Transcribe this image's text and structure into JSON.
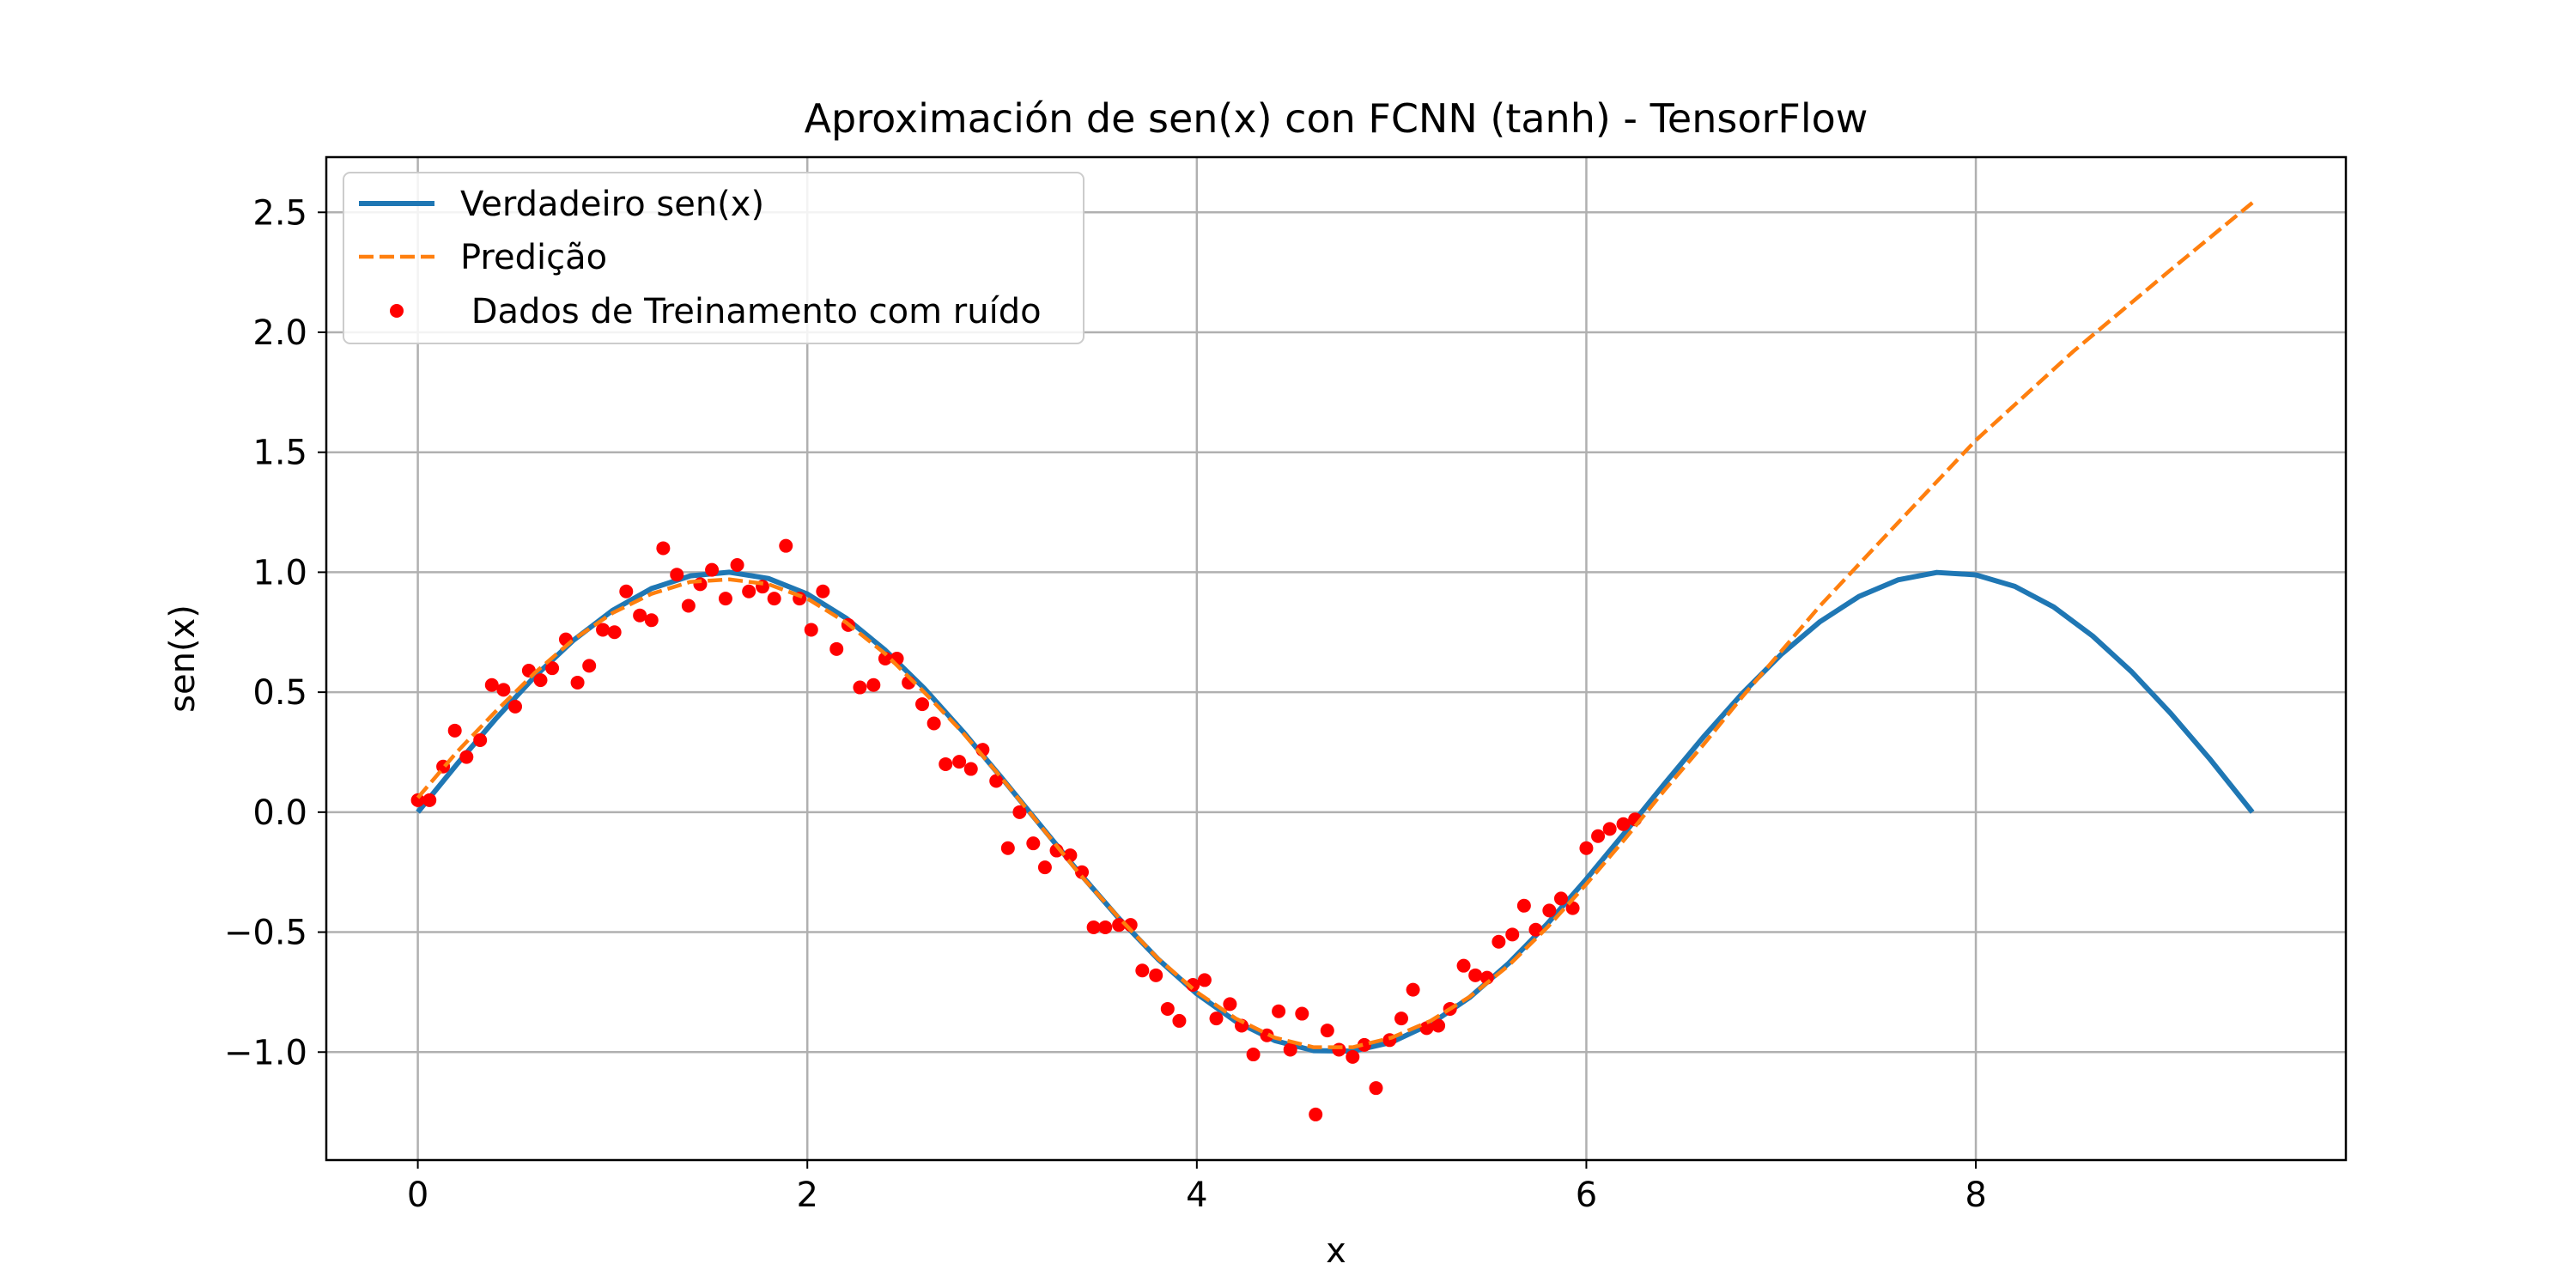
{
  "chart_data": {
    "type": "line",
    "title": "Aproximación de sen(x) con FCNN (tanh) - TensorFlow",
    "xlabel": "x",
    "ylabel": "sen(x)",
    "xlim": [
      -0.47,
      9.9
    ],
    "ylim": [
      -1.45,
      2.73
    ],
    "xticks": [
      0,
      2,
      4,
      6,
      8
    ],
    "yticks": [
      -1.0,
      -0.5,
      0.0,
      0.5,
      1.0,
      1.5,
      2.0,
      2.5
    ],
    "xtick_labels": [
      "0",
      "2",
      "4",
      "6",
      "8"
    ],
    "ytick_labels": [
      "−1.0",
      "−0.5",
      "0.0",
      "0.5",
      "1.0",
      "1.5",
      "2.0",
      "2.5"
    ],
    "grid": true,
    "legend_position": "top-left",
    "series": [
      {
        "name": "Verdadeiro sen(x)",
        "style": "solid",
        "color": "#1f77b4",
        "x": [
          0,
          0.2,
          0.4,
          0.6,
          0.8,
          1.0,
          1.2,
          1.4,
          1.6,
          1.8,
          2.0,
          2.2,
          2.4,
          2.6,
          2.8,
          3.0,
          3.2,
          3.4,
          3.6,
          3.8,
          4.0,
          4.2,
          4.4,
          4.6,
          4.8,
          5.0,
          5.2,
          5.4,
          5.6,
          5.8,
          6.0,
          6.2,
          6.4,
          6.6,
          6.8,
          7.0,
          7.2,
          7.4,
          7.6,
          7.8,
          8.0,
          8.2,
          8.4,
          8.6,
          8.8,
          9.0,
          9.2,
          9.42
        ],
        "y": [
          0.0,
          0.199,
          0.389,
          0.565,
          0.717,
          0.841,
          0.932,
          0.985,
          1.0,
          0.974,
          0.909,
          0.808,
          0.675,
          0.516,
          0.335,
          0.141,
          -0.058,
          -0.256,
          -0.443,
          -0.612,
          -0.757,
          -0.872,
          -0.952,
          -0.994,
          -0.996,
          -0.959,
          -0.883,
          -0.773,
          -0.631,
          -0.465,
          -0.279,
          -0.083,
          0.117,
          0.312,
          0.494,
          0.657,
          0.794,
          0.899,
          0.968,
          0.999,
          0.989,
          0.941,
          0.855,
          0.734,
          0.585,
          0.412,
          0.223,
          0.0
        ]
      },
      {
        "name": "Predição",
        "style": "dashed",
        "color": "#ff7f0e",
        "x": [
          0,
          0.2,
          0.4,
          0.6,
          0.8,
          1.0,
          1.2,
          1.4,
          1.6,
          1.8,
          2.0,
          2.2,
          2.4,
          2.6,
          2.8,
          3.0,
          3.2,
          3.4,
          3.6,
          3.8,
          4.0,
          4.2,
          4.4,
          4.6,
          4.8,
          5.0,
          5.2,
          5.4,
          5.6,
          5.8,
          6.0,
          6.2,
          6.4,
          6.6,
          6.8,
          7.0,
          7.2,
          7.5,
          8.0,
          8.5,
          9.0,
          9.42
        ],
        "y": [
          0.06,
          0.25,
          0.42,
          0.58,
          0.72,
          0.83,
          0.91,
          0.96,
          0.97,
          0.95,
          0.89,
          0.79,
          0.66,
          0.5,
          0.33,
          0.14,
          -0.06,
          -0.26,
          -0.44,
          -0.61,
          -0.75,
          -0.86,
          -0.94,
          -0.98,
          -0.98,
          -0.94,
          -0.87,
          -0.77,
          -0.64,
          -0.48,
          -0.3,
          -0.11,
          0.09,
          0.28,
          0.48,
          0.67,
          0.86,
          1.12,
          1.55,
          1.92,
          2.26,
          2.54
        ]
      }
    ],
    "scatter": {
      "name": " Dados de Treinamento com ruído",
      "color": "#ff0000",
      "x": [
        0.0,
        0.06,
        0.13,
        0.19,
        0.25,
        0.32,
        0.38,
        0.44,
        0.5,
        0.57,
        0.63,
        0.69,
        0.76,
        0.82,
        0.88,
        0.95,
        1.01,
        1.07,
        1.14,
        1.2,
        1.26,
        1.33,
        1.39,
        1.45,
        1.51,
        1.58,
        1.64,
        1.7,
        1.77,
        1.83,
        1.89,
        1.96,
        2.02,
        2.08,
        2.15,
        2.21,
        2.27,
        2.34,
        2.4,
        2.46,
        2.52,
        2.59,
        2.65,
        2.71,
        2.78,
        2.84,
        2.9,
        2.97,
        3.03,
        3.09,
        3.16,
        3.22,
        3.28,
        3.35,
        3.41,
        3.47,
        3.53,
        3.6,
        3.66,
        3.72,
        3.79,
        3.85,
        3.91,
        3.98,
        4.04,
        4.1,
        4.17,
        4.23,
        4.29,
        4.36,
        4.42,
        4.48,
        4.54,
        4.61,
        4.67,
        4.73,
        4.8,
        4.86,
        4.92,
        4.99,
        5.05,
        5.11,
        5.18,
        5.24,
        5.3,
        5.37,
        5.43,
        5.49,
        5.55,
        5.62,
        5.68,
        5.74,
        5.81,
        5.87,
        5.93,
        6.0,
        6.06,
        6.12,
        6.19,
        6.25
      ],
      "y": [
        0.05,
        0.05,
        0.19,
        0.34,
        0.23,
        0.3,
        0.53,
        0.51,
        0.44,
        0.59,
        0.55,
        0.6,
        0.72,
        0.54,
        0.61,
        0.76,
        0.75,
        0.92,
        0.82,
        0.8,
        1.1,
        0.99,
        0.86,
        0.95,
        1.01,
        0.89,
        1.03,
        0.92,
        0.94,
        0.89,
        1.11,
        0.89,
        0.76,
        0.92,
        0.68,
        0.78,
        0.52,
        0.53,
        0.64,
        0.64,
        0.54,
        0.45,
        0.37,
        0.2,
        0.21,
        0.18,
        0.26,
        0.13,
        -0.15,
        0.0,
        -0.13,
        -0.23,
        -0.16,
        -0.18,
        -0.25,
        -0.48,
        -0.48,
        -0.47,
        -0.47,
        -0.66,
        -0.68,
        -0.82,
        -0.87,
        -0.72,
        -0.7,
        -0.86,
        -0.8,
        -0.89,
        -1.01,
        -0.93,
        -0.83,
        -0.99,
        -0.84,
        -1.26,
        -0.91,
        -0.99,
        -1.02,
        -0.97,
        -1.15,
        -0.95,
        -0.86,
        -0.74,
        -0.9,
        -0.89,
        -0.82,
        -0.64,
        -0.68,
        -0.69,
        -0.54,
        -0.51,
        -0.39,
        -0.49,
        -0.41,
        -0.36,
        -0.4,
        -0.15,
        -0.1,
        -0.07,
        -0.05,
        -0.03
      ]
    }
  }
}
